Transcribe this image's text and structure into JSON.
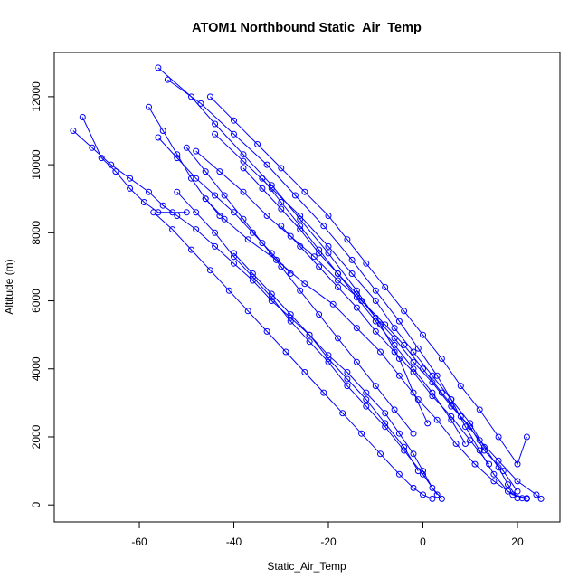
{
  "chart_data": {
    "type": "scatter",
    "title": "ATOM1 Northbound Static_Air_Temp",
    "xlabel": "Static_Air_Temp",
    "ylabel": "Altitude (m)",
    "xlim": [
      -78,
      29
    ],
    "ylim": [
      -500,
      13300
    ],
    "xticks": [
      -60,
      -40,
      -20,
      0,
      20
    ],
    "yticks": [
      0,
      2000,
      4000,
      6000,
      8000,
      10000,
      12000
    ],
    "grid": false,
    "marker": "open-circle",
    "connected": true,
    "color": "#0000ff",
    "series": [
      {
        "x": [
          -56,
          -49,
          -44,
          -38,
          -32,
          -26,
          -20,
          -14,
          -9,
          -5,
          -2,
          1
        ],
        "y": [
          12850,
          12000,
          11200,
          10300,
          9400,
          8400,
          7400,
          6300,
          5300,
          4300,
          3300,
          2400
        ]
      },
      {
        "x": [
          -54,
          -47,
          -40,
          -33,
          -27,
          -21,
          -15,
          -10,
          -5,
          -1,
          3,
          6,
          9,
          12,
          15,
          18,
          21,
          22
        ],
        "y": [
          12500,
          11800,
          10900,
          10000,
          9100,
          8200,
          7200,
          6300,
          5400,
          4600,
          3800,
          3100,
          2300,
          1600,
          900,
          400,
          200,
          180
        ]
      },
      {
        "x": [
          -44,
          -38,
          -32,
          -26,
          -20,
          -15,
          -10,
          -6,
          -2,
          2,
          6,
          10,
          13,
          16,
          18,
          20
        ],
        "y": [
          10900,
          10100,
          9300,
          8500,
          7600,
          6800,
          6000,
          5200,
          4500,
          3800,
          3100,
          2400,
          1700,
          1100,
          600,
          200
        ]
      },
      {
        "x": [
          -74,
          -70,
          -66,
          -62,
          -58,
          -55,
          -52,
          -48,
          -44,
          -40,
          -36,
          -32,
          -28,
          -24,
          -20,
          -16,
          -12,
          -8,
          -5,
          -2,
          0,
          2,
          4
        ],
        "y": [
          11000,
          10500,
          10000,
          9600,
          9200,
          8800,
          8500,
          8100,
          7600,
          7100,
          6600,
          6000,
          5500,
          5000,
          4400,
          3900,
          3300,
          2700,
          2100,
          1500,
          1000,
          500,
          180
        ]
      },
      {
        "x": [
          -72,
          -68,
          -65,
          -62,
          -59,
          -56,
          -53,
          -50
        ],
        "y": [
          11400,
          10200,
          9800,
          9300,
          8900,
          8600,
          8600,
          8600
        ]
      },
      {
        "x": [
          -57,
          -53,
          -49,
          -45,
          -41,
          -37,
          -33,
          -29,
          -25,
          -21,
          -17,
          -13,
          -9,
          -5,
          -2,
          0,
          2
        ],
        "y": [
          8600,
          8100,
          7500,
          6900,
          6300,
          5700,
          5100,
          4500,
          3900,
          3300,
          2700,
          2100,
          1500,
          900,
          500,
          300,
          180
        ]
      },
      {
        "x": [
          -52,
          -48,
          -44,
          -40,
          -36,
          -32,
          -28,
          -24,
          -20,
          -16,
          -12,
          -8,
          -4,
          0,
          3
        ],
        "y": [
          9200,
          8600,
          8000,
          7300,
          6700,
          6100,
          5400,
          4800,
          4200,
          3500,
          2900,
          2300,
          1600,
          900,
          300
        ]
      },
      {
        "x": [
          -48,
          -43,
          -38,
          -33,
          -28,
          -23,
          -18,
          -13,
          -8,
          -4,
          0,
          4,
          8,
          12,
          16,
          20,
          24,
          25
        ],
        "y": [
          10400,
          9800,
          9200,
          8500,
          7900,
          7300,
          6600,
          6000,
          5300,
          4700,
          4000,
          3300,
          2600,
          1900,
          1300,
          700,
          300,
          180
        ]
      },
      {
        "x": [
          -46,
          -42,
          -37,
          -31,
          -25,
          -19,
          -14,
          -9,
          -5,
          -1,
          3,
          7,
          11,
          15,
          19,
          22
        ],
        "y": [
          9000,
          8400,
          7800,
          7200,
          6500,
          5900,
          5200,
          4500,
          3800,
          3100,
          2500,
          1800,
          1200,
          700,
          300,
          200
        ]
      },
      {
        "x": [
          -50,
          -46,
          -42,
          -38,
          -34,
          -30,
          -26,
          -22,
          -18,
          -14,
          -10,
          -6,
          -2
        ],
        "y": [
          10500,
          9800,
          9100,
          8400,
          7700,
          7000,
          6300,
          5600,
          4900,
          4200,
          3500,
          2800,
          2100
        ]
      },
      {
        "x": [
          -38,
          -34,
          -30,
          -26,
          -22,
          -18,
          -14,
          -10,
          -6,
          -2,
          2,
          6,
          10,
          13,
          17,
          20
        ],
        "y": [
          9900,
          9300,
          8700,
          8100,
          7400,
          6800,
          6200,
          5500,
          4900,
          4200,
          3600,
          2900,
          2300,
          1600,
          1000,
          400
        ]
      },
      {
        "x": [
          -45,
          -40,
          -35,
          -30,
          -25,
          -20,
          -16,
          -12,
          -8,
          -4,
          0,
          4,
          8,
          12,
          16,
          20,
          22
        ],
        "y": [
          12000,
          11300,
          10600,
          9900,
          9200,
          8500,
          7800,
          7100,
          6400,
          5700,
          5000,
          4300,
          3500,
          2800,
          2000,
          1200,
          2000
        ]
      },
      {
        "x": [
          -56,
          -52,
          -48,
          -44,
          -40,
          -36,
          -32,
          -28
        ],
        "y": [
          10800,
          10200,
          9600,
          9100,
          8600,
          8000,
          7400,
          6800
        ]
      },
      {
        "x": [
          -58,
          -55,
          -52,
          -49,
          -46,
          -43
        ],
        "y": [
          11700,
          11000,
          10300,
          9600,
          9000,
          8500
        ]
      },
      {
        "x": [
          -34,
          -30,
          -26,
          -22,
          -18,
          -14,
          -10,
          -6,
          -2,
          2,
          6,
          9
        ],
        "y": [
          9600,
          8900,
          8200,
          7500,
          6800,
          6100,
          5400,
          4700,
          4000,
          3300,
          2500,
          1800
        ]
      },
      {
        "x": [
          -30,
          -26,
          -22,
          -18,
          -14,
          -10,
          -6,
          -2,
          2,
          6,
          10,
          14
        ],
        "y": [
          8200,
          7600,
          7000,
          6400,
          5800,
          5100,
          4500,
          3900,
          3200,
          2600,
          1900,
          1200
        ]
      },
      {
        "x": [
          -40,
          -36,
          -32,
          -28,
          -24,
          -20,
          -16,
          -12,
          -8,
          -4,
          -1
        ],
        "y": [
          7400,
          6800,
          6200,
          5600,
          5000,
          4300,
          3700,
          3100,
          2400,
          1700,
          1000
        ]
      }
    ]
  }
}
